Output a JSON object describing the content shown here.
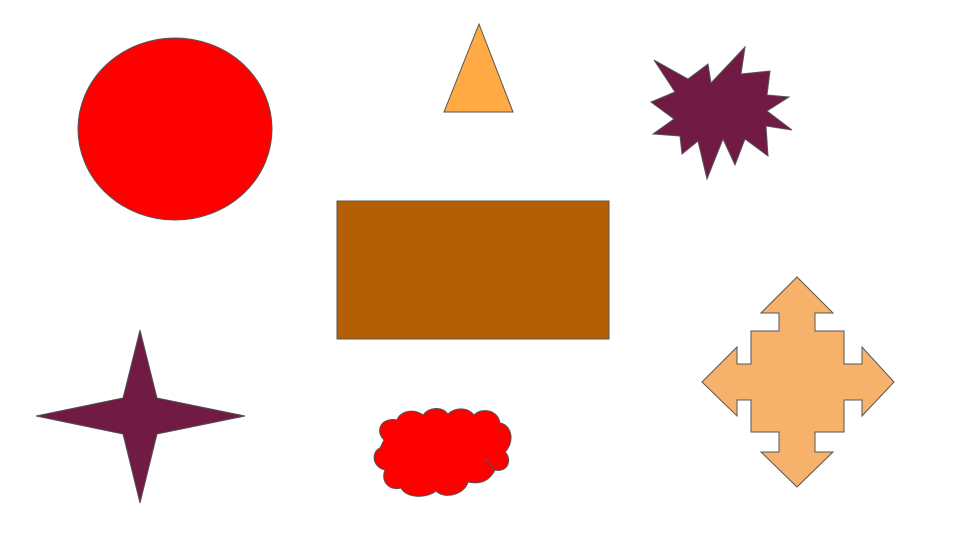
{
  "colors": {
    "background": "#ffffff",
    "stroke": "#555555",
    "red": "#ff0000",
    "orange_light": "#ffaa44",
    "burgundy": "#701a44",
    "brown": "#b45f06",
    "peach": "#f6b26b"
  },
  "shapes": [
    {
      "id": "circle",
      "kind": "circle",
      "color": "red"
    },
    {
      "id": "triangle",
      "kind": "triangle",
      "color": "orange_light"
    },
    {
      "id": "burst",
      "kind": "explosion-star",
      "color": "burgundy"
    },
    {
      "id": "rectangle",
      "kind": "rectangle",
      "color": "brown"
    },
    {
      "id": "four-point-star",
      "kind": "four-point-star",
      "color": "burgundy"
    },
    {
      "id": "cloud",
      "kind": "cloud",
      "color": "red"
    },
    {
      "id": "quad-arrow",
      "kind": "four-way-arrow",
      "color": "peach"
    }
  ]
}
